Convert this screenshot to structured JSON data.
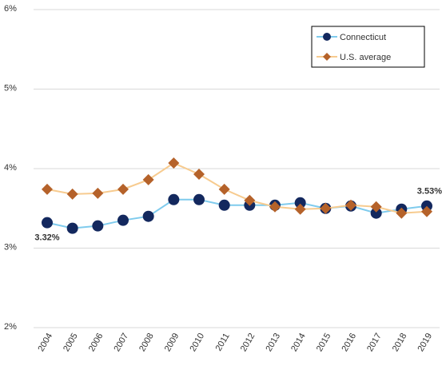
{
  "chart_data": {
    "type": "line",
    "categories": [
      "2004",
      "2005",
      "2006",
      "2007",
      "2008",
      "2009",
      "2010",
      "2011",
      "2012",
      "2013",
      "2014",
      "2015",
      "2016",
      "2017",
      "2018",
      "2019"
    ],
    "series": [
      {
        "name": "Connecticut",
        "line_color": "#7fcbed",
        "marker_color": "#13285e",
        "marker": "circle",
        "values": [
          3.32,
          3.25,
          3.28,
          3.35,
          3.4,
          3.61,
          3.61,
          3.54,
          3.54,
          3.54,
          3.57,
          3.5,
          3.53,
          3.44,
          3.49,
          3.53
        ],
        "value_labels": [
          "3.32%",
          null,
          null,
          null,
          null,
          null,
          null,
          null,
          null,
          null,
          null,
          null,
          null,
          null,
          null,
          "3.53%"
        ]
      },
      {
        "name": "U.S. average",
        "line_color": "#f7cb8f",
        "marker_color": "#b5622a",
        "marker": "diamond",
        "values": [
          3.74,
          3.68,
          3.69,
          3.74,
          3.86,
          4.07,
          3.93,
          3.74,
          3.6,
          3.52,
          3.49,
          3.5,
          3.54,
          3.52,
          3.44,
          3.46
        ]
      }
    ],
    "ylim": [
      2,
      6
    ],
    "yticks": [
      {
        "value": 2,
        "label": "2%"
      },
      {
        "value": 3,
        "label": "3%"
      },
      {
        "value": 4,
        "label": "4%"
      },
      {
        "value": 5,
        "label": "5%"
      },
      {
        "value": 6,
        "label": "6%"
      }
    ],
    "grid": true,
    "legend": "top-right"
  }
}
